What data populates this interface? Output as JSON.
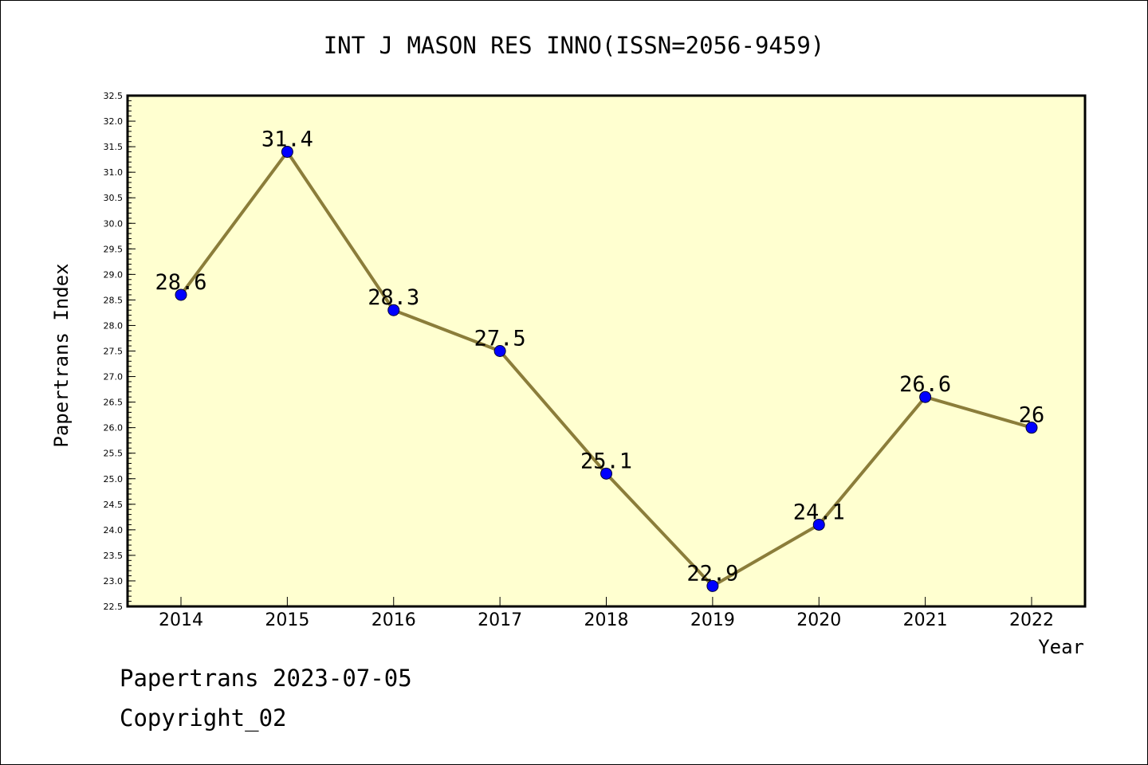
{
  "chart_data": {
    "type": "line",
    "title": "INT J MASON RES INNO(ISSN=2056-9459)",
    "xlabel": "Year",
    "ylabel": "Papertrans Index",
    "categories": [
      "2014",
      "2015",
      "2016",
      "2017",
      "2018",
      "2019",
      "2020",
      "2021",
      "2022"
    ],
    "series": [
      {
        "values": [
          28.6,
          31.4,
          28.3,
          27.5,
          25.1,
          22.9,
          24.1,
          26.6,
          26
        ],
        "labels": [
          "28.6",
          "31.4",
          "28.3",
          "27.5",
          "25.1",
          "22.9",
          "24.1",
          "26.6",
          "26"
        ]
      }
    ],
    "ylim": [
      22.5,
      32.5
    ],
    "yticks": [
      "22.5",
      "23.0",
      "23.5",
      "24.0",
      "24.5",
      "25.0",
      "25.5",
      "26.0",
      "26.5",
      "27.0",
      "27.5",
      "28.0",
      "28.5",
      "29.0",
      "29.5",
      "30.0",
      "30.5",
      "31.0",
      "31.5",
      "32.0",
      "32.5"
    ],
    "grid": false,
    "colors": {
      "plot_background": "#ffffd0",
      "line": "#8b7d3a",
      "marker": "#0000ff"
    }
  },
  "footer": {
    "source": "Papertrans 2023-07-05",
    "copyright": "Copyright_02"
  }
}
